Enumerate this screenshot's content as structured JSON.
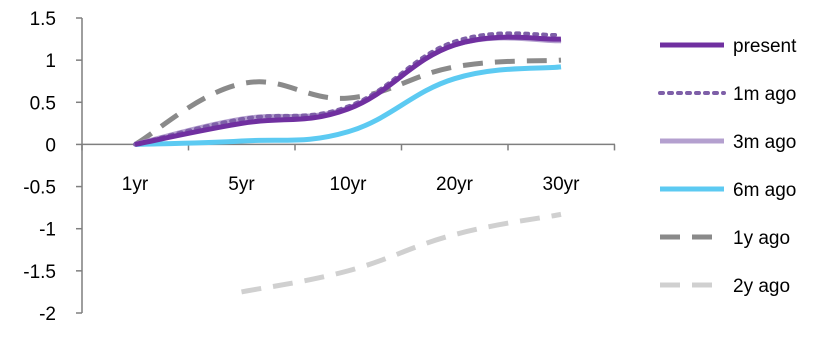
{
  "chart_data": {
    "type": "line",
    "title": "",
    "xlabel": "",
    "ylabel": "",
    "categories": [
      "1yr",
      "5yr",
      "10yr",
      "20yr",
      "30yr"
    ],
    "ylim": [
      -2,
      1.5
    ],
    "yticks": [
      "1.5",
      "1",
      "0.5",
      "0",
      "-0.5",
      "-1",
      "-1.5",
      "-2"
    ],
    "grid": false,
    "legend_position": "right",
    "series": [
      {
        "name": "present",
        "color": "#7030a0",
        "style": "solid-thick",
        "values": [
          0,
          0.25,
          0.42,
          1.18,
          1.25
        ]
      },
      {
        "name": "1m ago",
        "color": "#7e5fa8",
        "style": "dotted",
        "values": [
          0,
          0.3,
          0.45,
          1.22,
          1.3
        ]
      },
      {
        "name": "3m ago",
        "color": "#b4a0cf",
        "style": "solid-thick",
        "values": [
          0,
          0.3,
          0.43,
          1.18,
          1.23
        ]
      },
      {
        "name": "6m ago",
        "color": "#5ccaf2",
        "style": "solid-thick",
        "values": [
          0,
          0.04,
          0.15,
          0.78,
          0.92
        ]
      },
      {
        "name": "1y ago",
        "color": "#8a8a8a",
        "style": "dashed",
        "values": [
          0,
          0.72,
          0.55,
          0.92,
          1.0
        ]
      },
      {
        "name": "2y ago",
        "color": "#d0d0d0",
        "style": "dashed",
        "values": [
          null,
          -1.75,
          -1.5,
          -1.07,
          -0.83
        ]
      }
    ]
  }
}
